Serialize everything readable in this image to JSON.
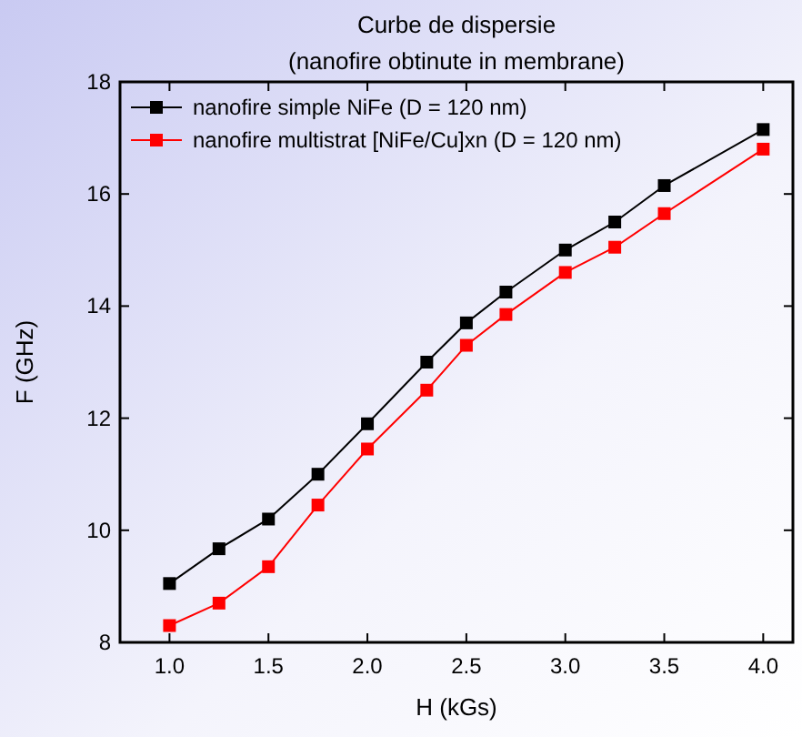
{
  "chart_data": {
    "type": "line",
    "title": "Curbe de dispersie",
    "subtitle": "(nanofire obtinute in membrane)",
    "xlabel": "H (kGs)",
    "ylabel": "F (GHz)",
    "x": [
      1.0,
      1.25,
      1.5,
      1.75,
      2.0,
      2.3,
      2.5,
      2.7,
      3.0,
      3.25,
      3.5,
      4.0
    ],
    "series": [
      {
        "name": "nanofire simple NiFe (D = 120 nm)",
        "color": "#000000",
        "values": [
          9.05,
          9.67,
          10.2,
          11.0,
          11.9,
          13.0,
          13.7,
          14.25,
          15.0,
          15.5,
          16.15,
          17.15
        ]
      },
      {
        "name": "nanofire multistrat [NiFe/Cu]xn (D = 120 nm)",
        "color": "#ff0000",
        "values": [
          8.3,
          8.7,
          9.35,
          10.45,
          11.45,
          12.5,
          13.3,
          13.85,
          14.6,
          15.05,
          15.65,
          16.8
        ]
      }
    ],
    "xlim": [
      0.75,
      4.15
    ],
    "xticks": [
      {
        "value": 1.0,
        "label": "1.0"
      },
      {
        "value": 1.5,
        "label": "1.5"
      },
      {
        "value": 2.0,
        "label": "2.0"
      },
      {
        "value": 2.5,
        "label": "2.5"
      },
      {
        "value": 3.0,
        "label": "3.0"
      },
      {
        "value": 3.5,
        "label": "3.5"
      },
      {
        "value": 4.0,
        "label": "4.0"
      }
    ],
    "ylim": [
      8,
      18
    ],
    "yticks": [
      8,
      10,
      12,
      14,
      16,
      18
    ],
    "marker": "square",
    "legend": "top left",
    "grid": false
  }
}
